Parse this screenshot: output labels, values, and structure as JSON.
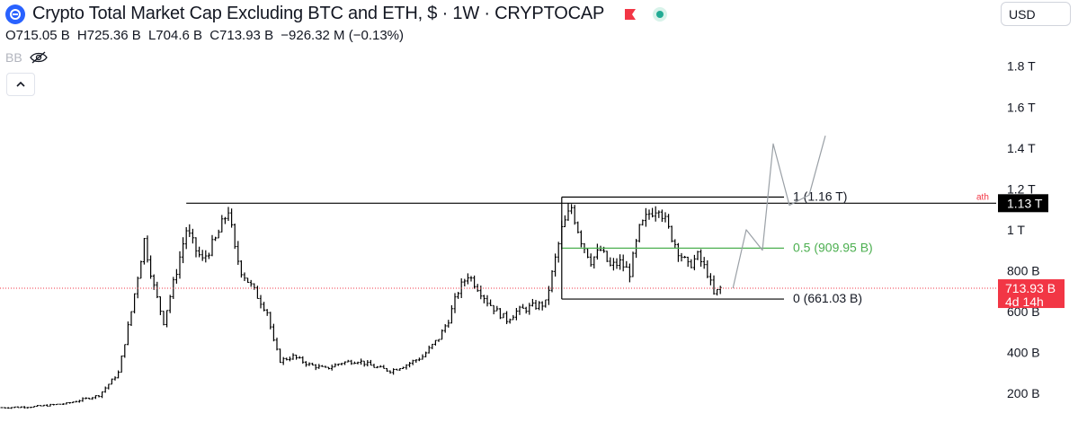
{
  "header": {
    "title": "Crypto Total Market Cap Excluding BTC and ETH, $ · 1W · CRYPTOCAP",
    "ohlc": {
      "o": "O715.05 B",
      "h": "H725.36 B",
      "l": "L704.6 B",
      "c": "C713.93 B",
      "chg": "−926.32 M (−0.13%)"
    },
    "indicator": "BB",
    "currency": "USD"
  },
  "colors": {
    "text": "#131722",
    "muted": "#b2b5be",
    "accent": "#2962ff",
    "fib_mid": "#4caf50",
    "price": "#f23645",
    "live": "#22ab94"
  },
  "icons": [
    "coin-logo-icon",
    "red-flag-icon",
    "live-dot-icon",
    "eye-off-icon",
    "chevron-up-icon"
  ],
  "chart_data": {
    "type": "ohlc",
    "y_axis": {
      "scale": "linear",
      "unit": "USD",
      "ticks": [
        "200 B",
        "400 B",
        "600 B",
        "800 B",
        "1 T",
        "1.2 T",
        "1.4 T",
        "1.6 T",
        "1.8 T"
      ],
      "tick_values": [
        200,
        400,
        600,
        800,
        1000,
        1200,
        1400,
        1600,
        1800
      ],
      "units_label": "B"
    },
    "current_price": {
      "label": "713.93 B",
      "countdown": "4d 14h",
      "value": 713.93
    },
    "ath": {
      "label": "ath",
      "price_label": "1.13 T",
      "value": 1130
    },
    "fib_levels": [
      {
        "label": "1 (1.16 T)",
        "value": 1160
      },
      {
        "label": "0.5 (909.95 B)",
        "value": 909.95
      },
      {
        "label": "0 (661.03 B)",
        "value": 661.03
      }
    ],
    "price_path_B": [
      [
        0,
        130
      ],
      [
        10,
        135
      ],
      [
        20,
        150
      ],
      [
        30,
        190
      ],
      [
        36,
        300
      ],
      [
        40,
        600
      ],
      [
        44,
        950
      ],
      [
        47,
        720
      ],
      [
        50,
        550
      ],
      [
        54,
        800
      ],
      [
        57,
        1000
      ],
      [
        60,
        900
      ],
      [
        62,
        850
      ],
      [
        66,
        950
      ],
      [
        70,
        1100
      ],
      [
        72,
        900
      ],
      [
        74,
        800
      ],
      [
        78,
        700
      ],
      [
        82,
        600
      ],
      [
        84,
        450
      ],
      [
        86,
        360
      ],
      [
        90,
        380
      ],
      [
        95,
        340
      ],
      [
        100,
        320
      ],
      [
        105,
        350
      ],
      [
        110,
        360
      ],
      [
        115,
        330
      ],
      [
        120,
        310
      ],
      [
        125,
        340
      ],
      [
        130,
        380
      ],
      [
        135,
        470
      ],
      [
        138,
        560
      ],
      [
        141,
        700
      ],
      [
        144,
        780
      ],
      [
        147,
        720
      ],
      [
        150,
        650
      ],
      [
        153,
        600
      ],
      [
        156,
        560
      ],
      [
        159,
        600
      ],
      [
        163,
        620
      ],
      [
        168,
        640
      ],
      [
        173,
        1000
      ],
      [
        176,
        1110
      ],
      [
        179,
        950
      ],
      [
        182,
        850
      ],
      [
        185,
        900
      ],
      [
        188,
        820
      ],
      [
        191,
        840
      ],
      [
        194,
        790
      ],
      [
        197,
        1000
      ],
      [
        200,
        1080
      ],
      [
        203,
        1120
      ],
      [
        206,
        1000
      ],
      [
        209,
        900
      ],
      [
        212,
        820
      ],
      [
        215,
        870
      ],
      [
        218,
        790
      ],
      [
        220,
        680
      ],
      [
        222,
        714
      ]
    ]
  }
}
